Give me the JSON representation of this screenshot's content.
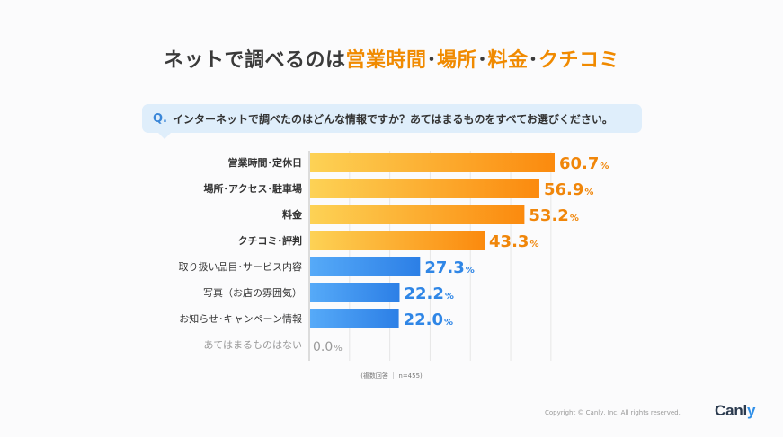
{
  "title": {
    "prefix": "ネットで調べるのは",
    "highlights": [
      "営業時間",
      "場所",
      "料金",
      "クチコミ"
    ],
    "separator": "･"
  },
  "question": {
    "marker": "Q.",
    "text": "インターネットで調べたのはどんな情報ですか？あてはまるものをすべてお選びください。"
  },
  "colors": {
    "orange_start": "#fdd255",
    "orange_end": "#fb8a0e",
    "blue_start": "#56aaf8",
    "blue_end": "#2c7fe6",
    "orange_text": "#f0860a",
    "blue_text": "#2f86e6",
    "gray_text": "#999999"
  },
  "chart_data": {
    "type": "bar",
    "orientation": "horizontal",
    "categories": [
      "営業時間･定休日",
      "場所･アクセス･駐車場",
      "料金",
      "クチコミ･評判",
      "取り扱い品目･サービス内容",
      "写真（お店の雰囲気）",
      "お知らせ･キャンペーン情報",
      "あてはまるものはない"
    ],
    "values": [
      60.7,
      56.9,
      53.2,
      43.3,
      27.3,
      22.2,
      22.0,
      0.0
    ],
    "value_labels": [
      "60.7",
      "56.9",
      "53.2",
      "43.3",
      "27.3",
      "22.2",
      "22.0",
      "0.0"
    ],
    "unit": "%",
    "highlight": [
      "orange",
      "orange",
      "orange",
      "orange",
      "blue",
      "blue",
      "blue",
      "none"
    ],
    "xlim": [
      0,
      70
    ],
    "grid": true
  },
  "footnote": "(複数回答 ｜ n=455)",
  "copyright": "Copyright © Canly, Inc. All rights reserved.",
  "logo": "Canl",
  "logo_tail": "y"
}
